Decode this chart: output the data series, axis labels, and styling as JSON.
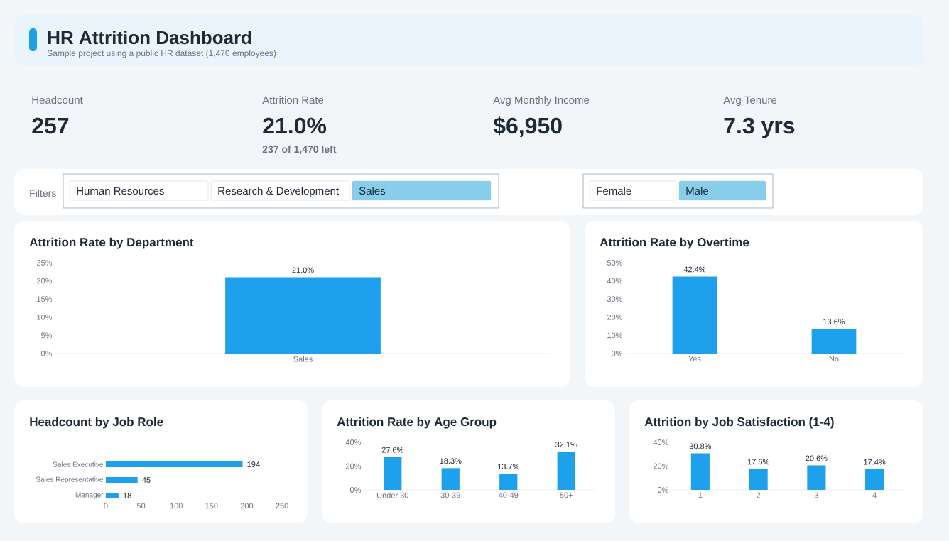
{
  "chart_data": [
    {
      "type": "other",
      "title": "HR Attrition Dashboard",
      "subtitle": "Sample project using a public HR dataset (1,470 employees)"
    },
    {
      "type": "other",
      "title": "Headcount",
      "annotations": [
        "257"
      ]
    },
    {
      "type": "other",
      "title": "Attrition Rate",
      "annotations": [
        "21.0%",
        "237 of 1,470 left"
      ]
    },
    {
      "type": "other",
      "title": "Avg Monthly Income",
      "annotations": [
        "$6,950"
      ]
    },
    {
      "type": "other",
      "title": "Avg Tenure",
      "annotations": [
        "7.3 yrs"
      ]
    },
    {
      "type": "other",
      "title": "Filters",
      "categories": [
        "Human Resources",
        "Research & Development",
        "Sales"
      ],
      "colors": [
        "#ffffff",
        "#ffffff",
        "#87ceeb"
      ]
    },
    {
      "type": "other",
      "categories": [
        "Female",
        "Male"
      ],
      "colors": [
        "#ffffff",
        "#87ceeb"
      ]
    },
    {
      "type": "bar",
      "title": "Attrition Rate by Department",
      "categories": [
        "Sales"
      ],
      "values": [
        21.0
      ],
      "value_labels": [
        "21.0%"
      ],
      "color": "#1ea1ed",
      "ylim": [
        0,
        25
      ],
      "yticks": [
        {
          "value": 0,
          "label": "0%"
        },
        {
          "value": 5,
          "label": "5%"
        },
        {
          "value": 10,
          "label": "10%"
        },
        {
          "value": 15,
          "label": "15%"
        },
        {
          "value": 20,
          "label": "20%"
        },
        {
          "value": 25,
          "label": "25%"
        }
      ]
    },
    {
      "type": "bar",
      "title": "Attrition Rate by Overtime",
      "categories": [
        "Yes",
        "No"
      ],
      "values": [
        42.4,
        13.6
      ],
      "value_labels": [
        "42.4%",
        "13.6%"
      ],
      "color": "#1ea1ed",
      "ylim": [
        0,
        50
      ],
      "yticks": [
        {
          "value": 0,
          "label": "0%"
        },
        {
          "value": 10,
          "label": "10%"
        },
        {
          "value": 20,
          "label": "20%"
        },
        {
          "value": 30,
          "label": "30%"
        },
        {
          "value": 40,
          "label": "40%"
        },
        {
          "value": 50,
          "label": "50%"
        }
      ]
    },
    {
      "type": "bar",
      "orientation": "horizontal",
      "title": "Headcount by Job Role",
      "categories": [
        "Sales Executive",
        "Sales Representative",
        "Manager"
      ],
      "values": [
        194,
        45,
        18
      ],
      "value_labels": [
        "194",
        "45",
        "18"
      ],
      "color": "#1ea1ed",
      "xlim": [
        0,
        250
      ],
      "xticks": [
        0,
        50,
        100,
        150,
        200,
        250
      ]
    },
    {
      "type": "bar",
      "title": "Attrition Rate by Age Group",
      "categories": [
        "Under 30",
        "30-39",
        "40-49",
        "50+"
      ],
      "values": [
        27.6,
        18.3,
        13.7,
        32.1
      ],
      "value_labels": [
        "27.6%",
        "18.3%",
        "13.7%",
        "32.1%"
      ],
      "color": "#1ea1ed",
      "ylim": [
        0,
        40
      ],
      "yticks": [
        {
          "value": 0,
          "label": "0%"
        },
        {
          "value": 20,
          "label": "20%"
        },
        {
          "value": 40,
          "label": "40%"
        }
      ]
    },
    {
      "type": "bar",
      "title": "Attrition by Job Satisfaction (1-4)",
      "categories": [
        "1",
        "2",
        "3",
        "4"
      ],
      "values": [
        30.8,
        17.6,
        20.6,
        17.4
      ],
      "value_labels": [
        "30.8%",
        "17.6%",
        "20.6%",
        "17.4%"
      ],
      "color": "#1ea1ed",
      "ylim": [
        0,
        40
      ],
      "yticks": [
        {
          "value": 0,
          "label": "0%"
        },
        {
          "value": 20,
          "label": "20%"
        },
        {
          "value": 40,
          "label": "40%"
        }
      ]
    }
  ]
}
